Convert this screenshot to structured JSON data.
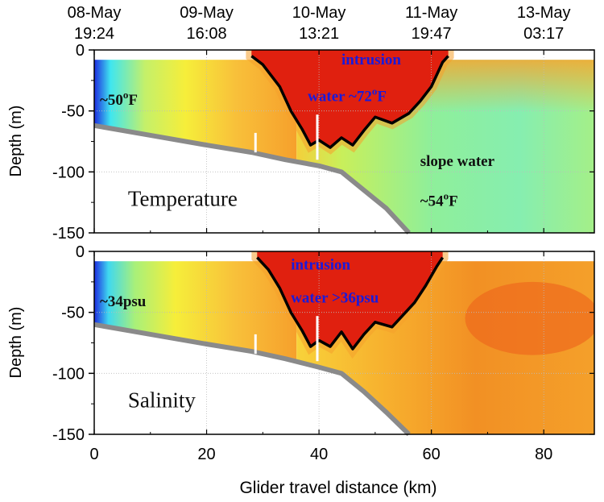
{
  "chart_data": [
    {
      "type": "heatmap",
      "variable": "Temperature",
      "ylabel": "Depth (m)",
      "xlim": [
        0,
        89
      ],
      "ylim": [
        -150,
        0
      ],
      "yticks": [
        "0",
        "-50",
        "-100",
        "-150"
      ],
      "top_axis": [
        {
          "x": 0,
          "date": "08-May",
          "time": "19:24"
        },
        {
          "x": 20,
          "date": "09-May",
          "time": "16:08"
        },
        {
          "x": 40,
          "date": "10-May",
          "time": "13:21"
        },
        {
          "x": 60,
          "date": "11-May",
          "time": "19:47"
        },
        {
          "x": 80,
          "date": "13-May",
          "time": "03:17"
        }
      ],
      "bottom_depth": [
        [
          0,
          -62
        ],
        [
          10,
          -70
        ],
        [
          20,
          -78
        ],
        [
          28,
          -84
        ],
        [
          34,
          -90
        ],
        [
          40,
          -95
        ],
        [
          44,
          -100
        ],
        [
          48,
          -115
        ],
        [
          52,
          -130
        ],
        [
          56,
          -150
        ]
      ],
      "intrusion_contour": [
        [
          28,
          -5
        ],
        [
          30,
          -12
        ],
        [
          33,
          -30
        ],
        [
          35,
          -50
        ],
        [
          37,
          -65
        ],
        [
          38.5,
          -78
        ],
        [
          40,
          -74
        ],
        [
          42,
          -80
        ],
        [
          44,
          -72
        ],
        [
          46,
          -78
        ],
        [
          48,
          -66
        ],
        [
          50,
          -55
        ],
        [
          53,
          -60
        ],
        [
          56,
          -52
        ],
        [
          58,
          -42
        ],
        [
          60,
          -30
        ],
        [
          62,
          -10
        ],
        [
          63,
          -5
        ]
      ],
      "annotations": [
        {
          "text": "intrusion",
          "x": 44,
          "y": -12,
          "color": "#1a1adb"
        },
        {
          "text": "water ~72",
          "sup": "o",
          "suffix": "F",
          "x": 38,
          "y": -42,
          "color": "#1a1adb"
        },
        {
          "text": "~50",
          "sup": "o",
          "suffix": "F",
          "x": 1,
          "y": -45,
          "color": "#111111"
        },
        {
          "text": "slope water",
          "x": 58,
          "y": -95,
          "color": "#111111"
        },
        {
          "text": "~54",
          "sup": "o",
          "suffix": "F",
          "x": 58,
          "y": -128,
          "color": "#111111"
        },
        {
          "text": "Temperature",
          "x": 6,
          "y": -128,
          "color": "#111111"
        }
      ]
    },
    {
      "type": "heatmap",
      "variable": "Salinity",
      "ylabel": "Depth (m)",
      "xlabel": "Glider travel distance (km)",
      "xlim": [
        0,
        89
      ],
      "ylim": [
        -150,
        0
      ],
      "xticks": [
        "0",
        "20",
        "40",
        "60",
        "80"
      ],
      "yticks": [
        "0",
        "-50",
        "-100",
        "-150"
      ],
      "bottom_depth": [
        [
          0,
          -60
        ],
        [
          10,
          -68
        ],
        [
          20,
          -76
        ],
        [
          28,
          -82
        ],
        [
          34,
          -88
        ],
        [
          40,
          -95
        ],
        [
          44,
          -100
        ],
        [
          48,
          -115
        ],
        [
          52,
          -132
        ],
        [
          56,
          -150
        ]
      ],
      "intrusion_contour": [
        [
          29,
          -5
        ],
        [
          31,
          -15
        ],
        [
          33,
          -30
        ],
        [
          35,
          -50
        ],
        [
          37,
          -65
        ],
        [
          38.5,
          -78
        ],
        [
          40,
          -73
        ],
        [
          42,
          -78
        ],
        [
          44,
          -66
        ],
        [
          46,
          -80
        ],
        [
          48,
          -68
        ],
        [
          50,
          -58
        ],
        [
          53,
          -62
        ],
        [
          55,
          -52
        ],
        [
          57,
          -42
        ],
        [
          59,
          -28
        ],
        [
          61,
          -12
        ],
        [
          62,
          -5
        ]
      ],
      "annotations": [
        {
          "text": "intrusion",
          "x": 35,
          "y": -15,
          "color": "#1a1adb"
        },
        {
          "text": "water >36psu",
          "x": 35,
          "y": -42,
          "color": "#1a1adb"
        },
        {
          "text": "~34psu",
          "x": 1,
          "y": -45,
          "color": "#111111"
        },
        {
          "text": "Salinity",
          "x": 6,
          "y": -128,
          "color": "#111111"
        }
      ]
    }
  ],
  "colors": {
    "cold": "#1d2ce0",
    "cyan": "#3fe6f0",
    "green": "#8fef9a",
    "yellow": "#f6ee3a",
    "orange": "#f5a02c",
    "red": "#e0200f",
    "dark_red": "#c81008",
    "bottom": "#8a8a8a",
    "contour": "#000000"
  }
}
